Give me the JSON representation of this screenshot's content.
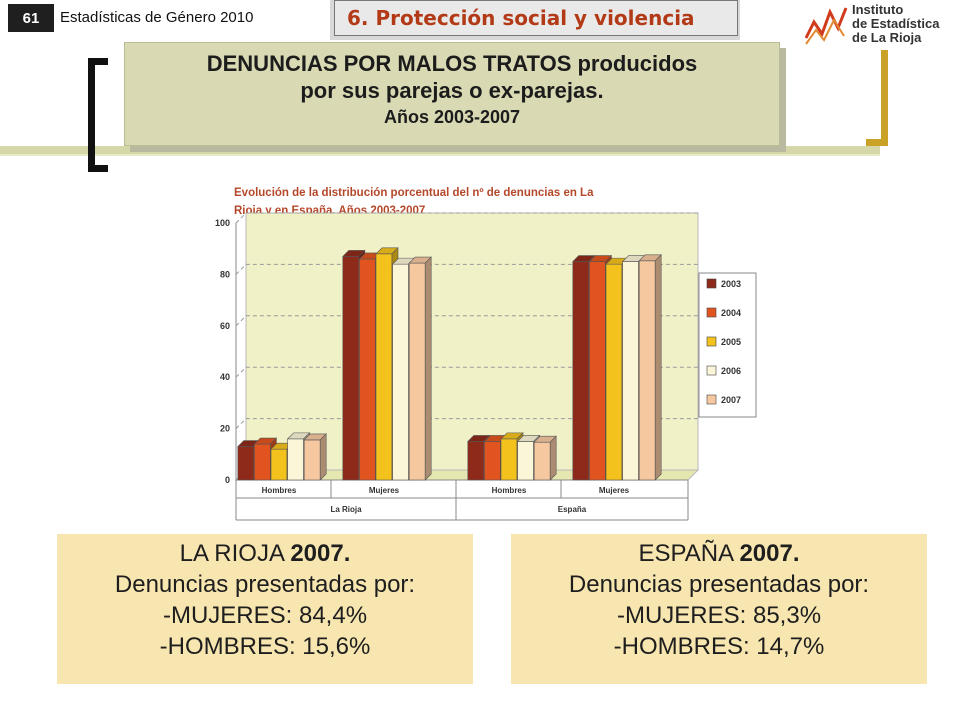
{
  "header": {
    "page_number": "61",
    "publication": "Estadísticas de Género 2010",
    "section": "6. Protección social y violencia"
  },
  "logo": {
    "line1": "Instituto",
    "line2": "de Estadística",
    "line3": "de La Rioja"
  },
  "title": {
    "line1": "DENUNCIAS POR MALOS TRATOS producidos",
    "line2": "por sus parejas o ex-parejas.",
    "line3": "Años 2003-2007"
  },
  "colors": {
    "2003": "#8e2a1a",
    "2004": "#e2541f",
    "2005": "#f4c21c",
    "2006": "#fbf6d8",
    "2007": "#f5c8a0",
    "chart_title": "#b5482a",
    "plot_bg": "#f1f1c8",
    "info_bg": "#f8e6b0"
  },
  "chart_data": {
    "type": "bar",
    "title": "Evolución de la distribución porcentual del nº de denuncias en La Rioja y en España. Años 2003-2007",
    "title_line1": "Evolución de la distribución porcentual del nº de denuncias en La",
    "title_line2": "Rioja y en España. Años 2003-2007",
    "categories": [
      "Hombres",
      "Mujeres",
      "Hombres",
      "Mujeres"
    ],
    "groups": [
      "La Rioja",
      "España"
    ],
    "series": [
      {
        "name": "2003",
        "values": [
          13,
          87,
          15,
          85
        ]
      },
      {
        "name": "2004",
        "values": [
          14,
          86,
          15,
          85
        ]
      },
      {
        "name": "2005",
        "values": [
          12,
          88,
          16,
          84
        ]
      },
      {
        "name": "2006",
        "values": [
          16,
          84,
          15,
          85
        ]
      },
      {
        "name": "2007",
        "values": [
          15.6,
          84.4,
          14.7,
          85.3
        ]
      }
    ],
    "yticks": [
      "0",
      "20",
      "40",
      "60",
      "80",
      "100"
    ],
    "ylim": [
      0,
      100
    ],
    "legend": "right",
    "grid": true
  },
  "info_rioja": {
    "heading_prefix": "LA RIOJA",
    "heading_year": "2007.",
    "line2": "Denuncias presentadas por:",
    "line3": "-MUJERES: 84,4%",
    "line4": "-HOMBRES: 15,6%"
  },
  "info_espana": {
    "heading_prefix": "ESPAÑA",
    "heading_year": "2007.",
    "line2": "Denuncias presentadas por:",
    "line3": "-MUJERES: 85,3%",
    "line4": "-HOMBRES: 14,7%"
  }
}
